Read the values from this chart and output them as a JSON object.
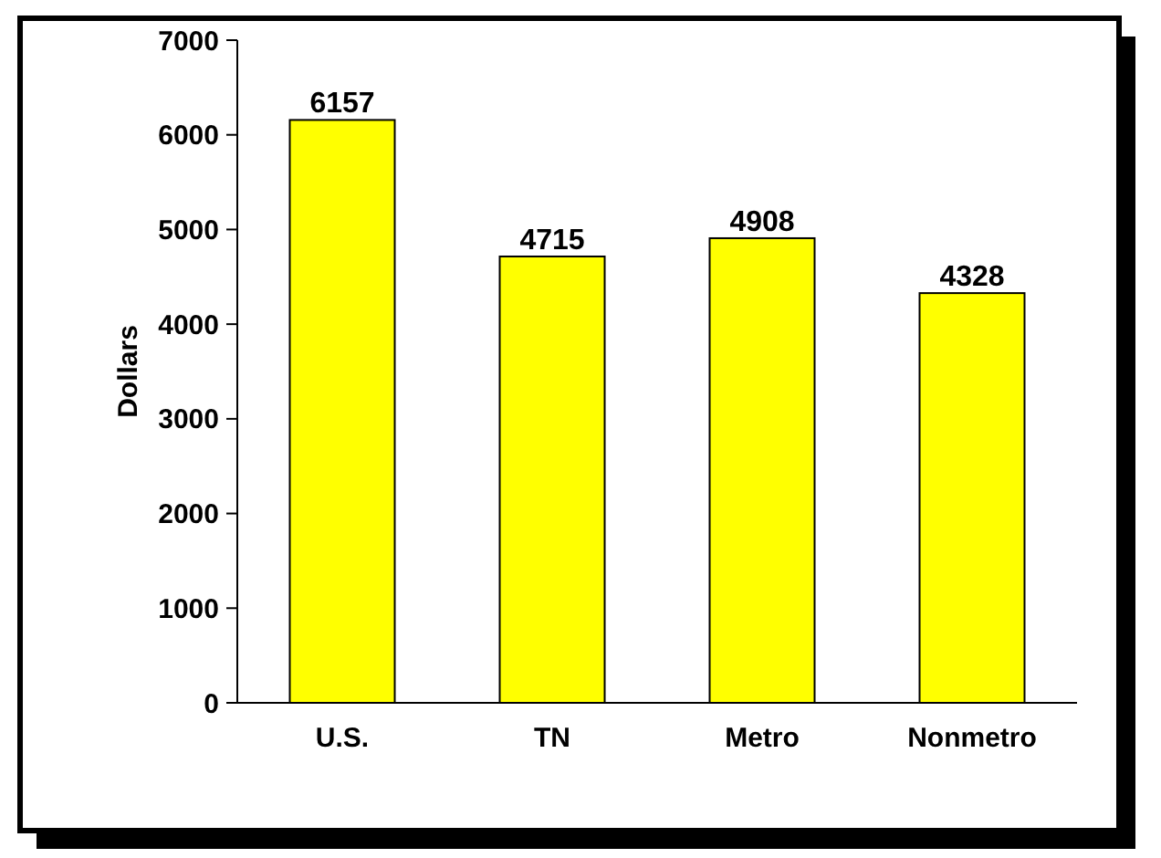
{
  "chart_data": {
    "type": "bar",
    "ylabel": "Dollars",
    "categories": [
      "U.S.",
      "TN",
      "Metro",
      "Nonmetro"
    ],
    "values": [
      6157,
      4715,
      4908,
      4328
    ],
    "color": "#ffff00",
    "ylim": [
      0,
      7000
    ],
    "yticks": [
      0,
      1000,
      2000,
      3000,
      4000,
      5000,
      6000,
      7000
    ],
    "data_labels": true,
    "grid": false
  }
}
